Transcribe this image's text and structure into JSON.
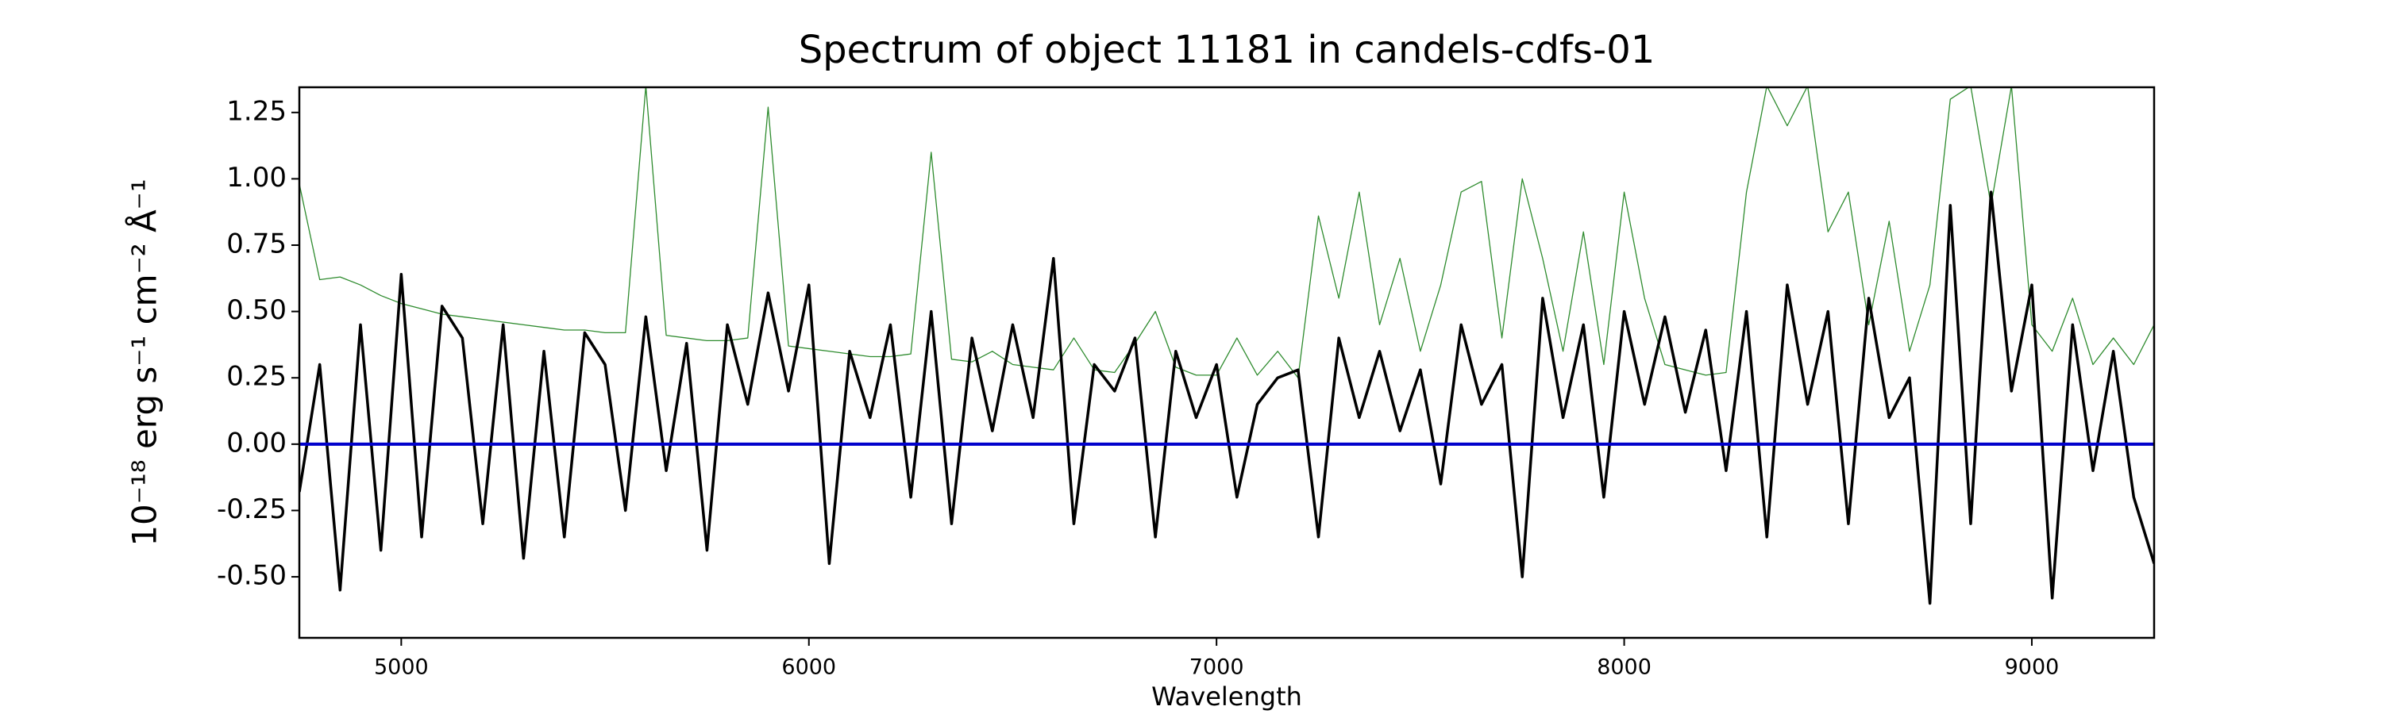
{
  "chart_data": {
    "type": "line",
    "title": "Spectrum of object 11181 in candels-cdfs-01",
    "xlabel": "Wavelength",
    "ylabel": "10⁻¹⁸ erg s⁻¹ cm⁻² Å⁻¹",
    "x": [
      4750,
      4800,
      4850,
      4900,
      4950,
      5000,
      5050,
      5100,
      5150,
      5200,
      5250,
      5300,
      5350,
      5400,
      5450,
      5500,
      5550,
      5600,
      5650,
      5700,
      5750,
      5800,
      5850,
      5900,
      5950,
      6000,
      6050,
      6100,
      6150,
      6200,
      6250,
      6300,
      6350,
      6400,
      6450,
      6500,
      6550,
      6600,
      6650,
      6700,
      6750,
      6800,
      6850,
      6900,
      6950,
      7000,
      7050,
      7100,
      7150,
      7200,
      7250,
      7300,
      7350,
      7400,
      7450,
      7500,
      7550,
      7600,
      7650,
      7700,
      7750,
      7800,
      7850,
      7900,
      7950,
      8000,
      8050,
      8100,
      8150,
      8200,
      8250,
      8300,
      8350,
      8400,
      8450,
      8500,
      8550,
      8600,
      8650,
      8700,
      8750,
      8800,
      8850,
      8900,
      8950,
      9000,
      9050,
      9100,
      9150,
      9200,
      9250,
      9300
    ],
    "series": [
      {
        "color": "#2e8b2e",
        "width": 1.3,
        "values": [
          0.98,
          0.62,
          0.63,
          0.6,
          0.56,
          0.53,
          0.51,
          0.49,
          0.48,
          0.47,
          0.46,
          0.45,
          0.44,
          0.43,
          0.43,
          0.42,
          0.42,
          1.35,
          0.41,
          0.4,
          0.39,
          0.39,
          0.4,
          1.27,
          0.37,
          0.36,
          0.35,
          0.34,
          0.33,
          0.33,
          0.34,
          1.1,
          0.32,
          0.31,
          0.35,
          0.3,
          0.29,
          0.28,
          0.4,
          0.28,
          0.27,
          0.38,
          0.5,
          0.29,
          0.26,
          0.26,
          0.4,
          0.26,
          0.35,
          0.25,
          0.86,
          0.55,
          0.95,
          0.45,
          0.7,
          0.35,
          0.6,
          0.95,
          0.99,
          0.4,
          1.0,
          0.7,
          0.35,
          0.8,
          0.3,
          0.95,
          0.55,
          0.3,
          0.28,
          0.26,
          0.27,
          0.95,
          1.35,
          1.2,
          1.35,
          0.8,
          0.95,
          0.45,
          0.84,
          0.35,
          0.6,
          1.3,
          1.35,
          0.9,
          1.35,
          0.45,
          0.35,
          0.55,
          0.3,
          0.4,
          0.3,
          0.45
        ]
      },
      {
        "color": "#000000",
        "width": 3.5,
        "values": [
          -0.18,
          0.3,
          -0.55,
          0.45,
          -0.4,
          0.64,
          -0.35,
          0.52,
          0.4,
          -0.3,
          0.45,
          -0.43,
          0.35,
          -0.35,
          0.42,
          0.3,
          -0.25,
          0.48,
          -0.1,
          0.38,
          -0.4,
          0.45,
          0.15,
          0.57,
          0.2,
          0.6,
          -0.45,
          0.35,
          0.1,
          0.45,
          -0.2,
          0.5,
          -0.3,
          0.4,
          0.05,
          0.45,
          0.1,
          0.7,
          -0.3,
          0.3,
          0.2,
          0.4,
          -0.35,
          0.35,
          0.1,
          0.3,
          -0.2,
          0.15,
          0.25,
          0.28,
          -0.35,
          0.4,
          0.1,
          0.35,
          0.05,
          0.28,
          -0.15,
          0.45,
          0.15,
          0.3,
          -0.5,
          0.55,
          0.1,
          0.45,
          -0.2,
          0.5,
          0.15,
          0.48,
          0.12,
          0.43,
          -0.1,
          0.5,
          -0.35,
          0.6,
          0.15,
          0.5,
          -0.3,
          0.55,
          0.1,
          0.25,
          -0.6,
          0.9,
          -0.3,
          0.95,
          0.2,
          0.6,
          -0.58,
          0.45,
          -0.1,
          0.35,
          -0.2,
          -0.45
        ]
      }
    ],
    "hline": {
      "value": 0,
      "color": "#0000cc"
    },
    "xlim": [
      4750,
      9300
    ],
    "xticks": [
      5000,
      6000,
      7000,
      8000,
      9000
    ],
    "ylim": [
      -0.73,
      1.345
    ],
    "yticks": [
      {
        "value": -0.5,
        "label": "-0.50"
      },
      {
        "value": -0.25,
        "label": "-0.25"
      },
      {
        "value": 0,
        "label": "0.00"
      },
      {
        "value": 0.25,
        "label": "0.25"
      },
      {
        "value": 0.5,
        "label": "0.50"
      },
      {
        "value": 0.75,
        "label": "0.75"
      },
      {
        "value": 1,
        "label": "1.00"
      },
      {
        "value": 1.25,
        "label": "1.25"
      }
    ]
  }
}
